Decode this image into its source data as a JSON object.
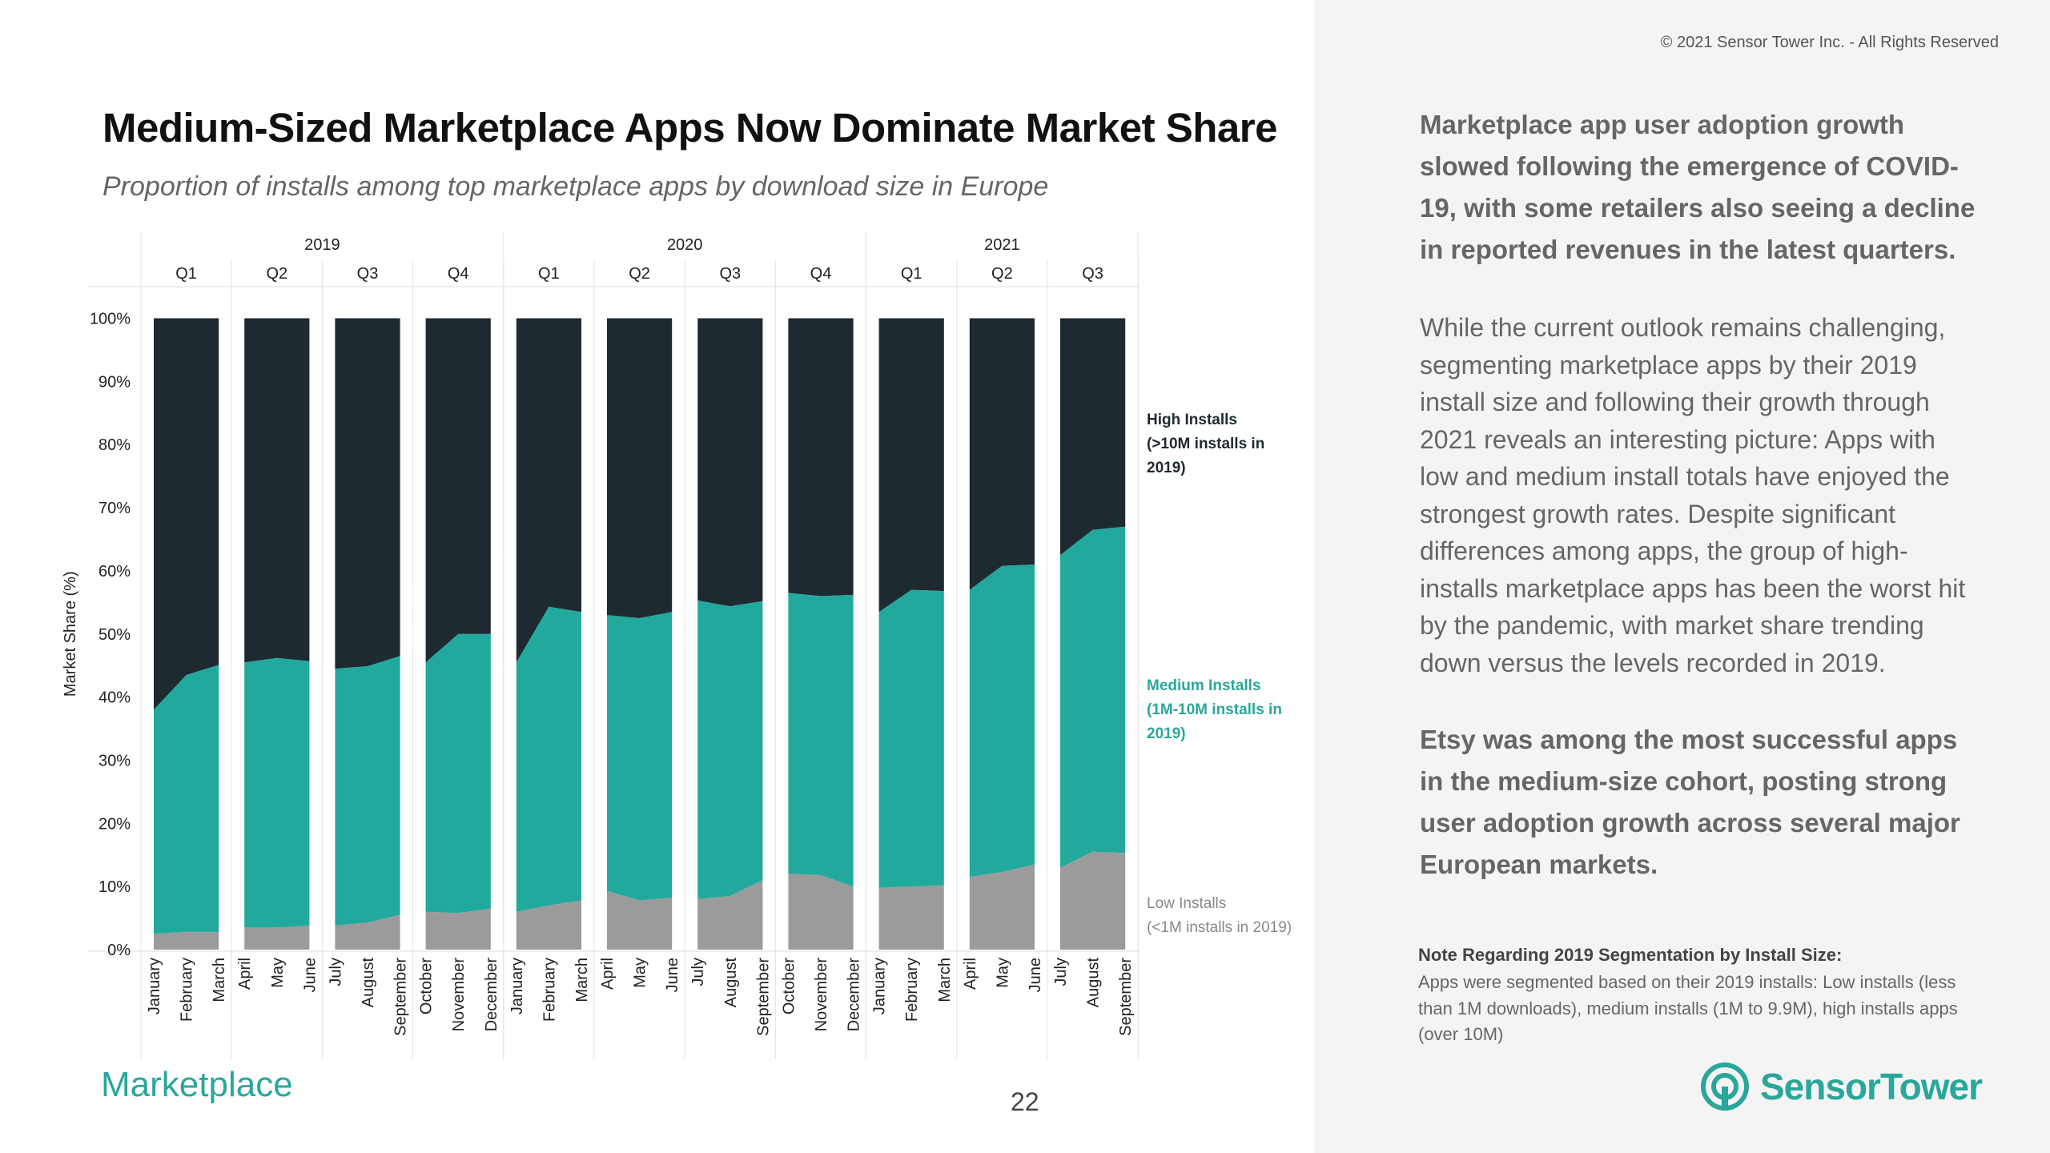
{
  "copyright": "© 2021 Sensor Tower Inc. - All Rights Reserved",
  "title": "Medium-Sized Marketplace Apps Now Dominate Market Share",
  "subtitle": "Proportion of installs among top marketplace apps by download size in Europe",
  "watermark": "sensortower",
  "section_label": "Marketplace",
  "page_number": "22",
  "logo_text": "SensorTower",
  "paragraphs": [
    "Marketplace app user adoption growth slowed following the emergence of COVID-19, with some retailers also seeing a decline in reported revenues in the latest quarters.",
    "While the current outlook remains challenging, segmenting marketplace apps by their 2019 install size and following their growth through 2021 reveals an interesting picture: Apps with low and medium install totals have enjoyed the strongest growth rates. Despite significant differences among apps, the group of high-installs marketplace apps has been the worst hit by the pandemic, with market share trending down versus the levels recorded in 2019.",
    "Etsy was among the most successful apps in the medium-size cohort, posting strong user adoption growth across several major European markets."
  ],
  "note": {
    "title": "Note Regarding 2019 Segmentation by Install Size:",
    "body": "Apps were segmented based on their 2019 installs: Low installs (less than 1M downloads), medium installs (1M to 9.9M),  high installs apps (over 10M)"
  },
  "colors": {
    "high": "#1d2a30",
    "medium": "#21a99d",
    "low": "#9b9b9b",
    "accent": "#2aa79b"
  },
  "chart_data": {
    "type": "area",
    "stacked": true,
    "ylabel": "Market Share (%)",
    "ylim": [
      0,
      100
    ],
    "yticks": [
      "0%",
      "10%",
      "20%",
      "30%",
      "40%",
      "50%",
      "60%",
      "70%",
      "80%",
      "90%",
      "100%"
    ],
    "years": [
      {
        "label": "2019",
        "quarters": 4
      },
      {
        "label": "2020",
        "quarters": 4
      },
      {
        "label": "2021",
        "quarters": 3
      }
    ],
    "quarters": [
      {
        "label": "Q1",
        "months": [
          "January",
          "February",
          "March"
        ]
      },
      {
        "label": "Q2",
        "months": [
          "April",
          "May",
          "June"
        ]
      },
      {
        "label": "Q3",
        "months": [
          "July",
          "August",
          "September"
        ]
      },
      {
        "label": "Q4",
        "months": [
          "October",
          "November",
          "December"
        ]
      },
      {
        "label": "Q1",
        "months": [
          "January",
          "February",
          "March"
        ]
      },
      {
        "label": "Q2",
        "months": [
          "April",
          "May",
          "June"
        ]
      },
      {
        "label": "Q3",
        "months": [
          "July",
          "August",
          "September"
        ]
      },
      {
        "label": "Q4",
        "months": [
          "October",
          "November",
          "December"
        ]
      },
      {
        "label": "Q1",
        "months": [
          "January",
          "February",
          "March"
        ]
      },
      {
        "label": "Q2",
        "months": [
          "April",
          "May",
          "June"
        ]
      },
      {
        "label": "Q3",
        "months": [
          "July",
          "August",
          "September"
        ]
      }
    ],
    "series": [
      {
        "name": "Low Installs",
        "legend_lines": [
          "Low Installs",
          "(<1M installs in 2019)"
        ],
        "values": [
          2.5,
          2.8,
          2.8,
          3.5,
          3.5,
          3.8,
          3.8,
          4.3,
          5.5,
          6,
          5.8,
          6.5,
          6,
          7,
          7.8,
          9.3,
          7.8,
          8.2,
          8,
          8.5,
          11,
          12,
          11.8,
          10,
          9.8,
          10,
          10.2,
          11.5,
          12.3,
          13.5,
          13,
          15.5,
          15.3
        ]
      },
      {
        "name": "Medium Installs",
        "legend_lines": [
          "Medium Installs",
          "(1M-10M installs in",
          "2019)"
        ],
        "values": [
          35.5,
          40.7,
          42.3,
          42,
          42.7,
          41.9,
          40.7,
          40.6,
          41,
          39.5,
          44.2,
          43.5,
          39.5,
          47.3,
          45.7,
          43.7,
          44.7,
          45.3,
          47.3,
          45.9,
          44.2,
          44.5,
          44.2,
          46.2,
          43.7,
          47,
          46.6,
          45.5,
          48.5,
          47.5,
          49.5,
          51,
          51.7
        ]
      },
      {
        "name": "High Installs",
        "legend_lines": [
          "High Installs",
          "(>10M installs in",
          "2019)"
        ],
        "values": [
          62,
          56.5,
          54.9,
          54.5,
          53.8,
          54.3,
          55.5,
          55.1,
          53.5,
          54.5,
          50,
          50,
          54.5,
          45.7,
          46.5,
          47,
          47.5,
          46.5,
          44.7,
          45.6,
          44.8,
          43.5,
          44,
          43.8,
          46.5,
          43,
          43.2,
          43,
          39.2,
          39,
          37.5,
          33.5,
          33
        ]
      }
    ],
    "legend_position": "right"
  }
}
